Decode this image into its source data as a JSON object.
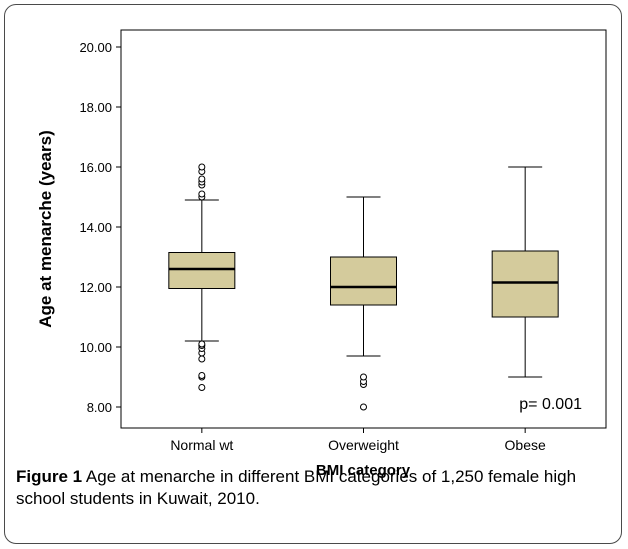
{
  "caption": {
    "label": "Figure 1",
    "text": "Age at menarche in different BMI categories of 1,250 female high school students in Kuwait, 2010."
  },
  "chart_data": {
    "type": "boxplot",
    "xlabel": "BMI category",
    "ylabel": "Age at menarche (years)",
    "ylim": [
      7.5,
      20.5
    ],
    "yticks": [
      "8.00",
      "10.00",
      "12.00",
      "14.00",
      "16.00",
      "18.00",
      "20.00"
    ],
    "ytick_values": [
      8,
      10,
      12,
      14,
      16,
      18,
      20
    ],
    "categories": [
      "Normal wt",
      "Overweight",
      "Obese"
    ],
    "boxes": [
      {
        "whisker_low": 10.2,
        "q1": 11.95,
        "median": 12.6,
        "q3": 13.15,
        "whisker_high": 14.9,
        "outliers": [
          8.65,
          9.0,
          9.05,
          9.6,
          9.8,
          9.95,
          10.05,
          10.1,
          15.0,
          15.1,
          15.4,
          15.5,
          15.6,
          15.85,
          16.0
        ]
      },
      {
        "whisker_low": 9.7,
        "q1": 11.4,
        "median": 12.0,
        "q3": 13.0,
        "whisker_high": 15.0,
        "outliers": [
          8.0,
          8.75,
          8.85,
          9.0
        ]
      },
      {
        "whisker_low": 9.0,
        "q1": 11.0,
        "median": 12.15,
        "q3": 13.2,
        "whisker_high": 16.0,
        "outliers": []
      }
    ],
    "box_color": "#d4cb9c",
    "annotation": "p= 0.001",
    "grid": false
  }
}
